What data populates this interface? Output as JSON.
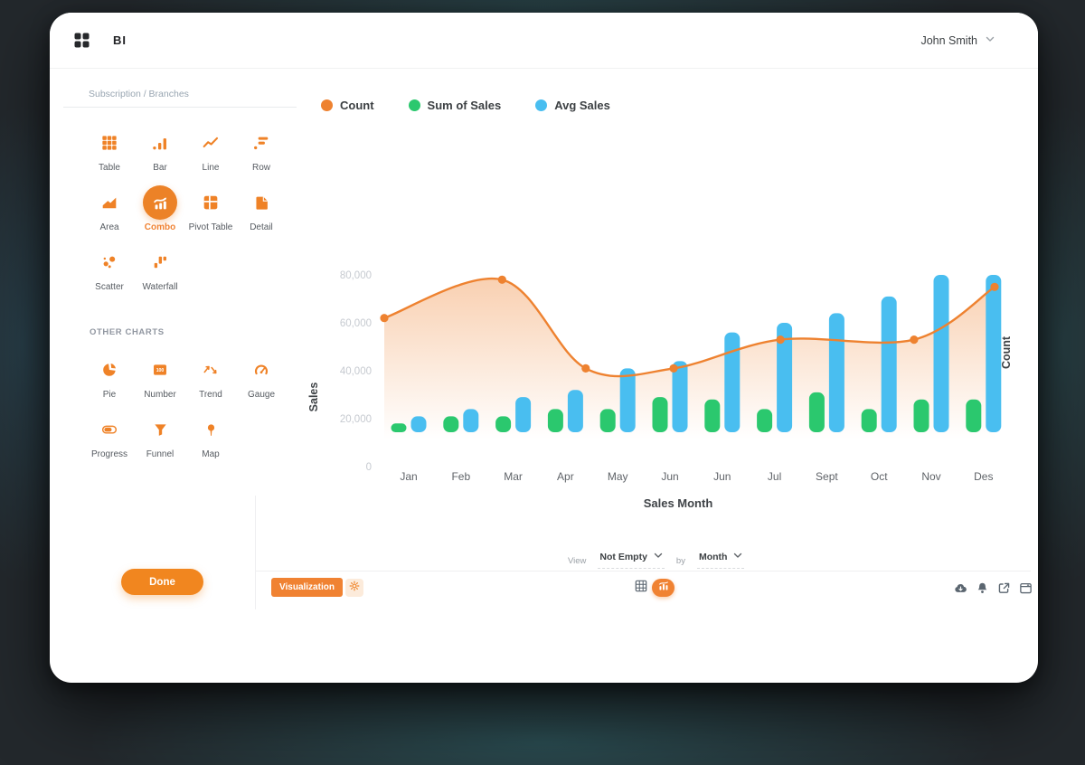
{
  "header": {
    "app_title": "BI",
    "user_name": "John Smith"
  },
  "sidebar": {
    "breadcrumb": [
      "Subscription",
      "Branches"
    ],
    "chart_types": [
      {
        "label": "Table",
        "icon": "table"
      },
      {
        "label": "Bar",
        "icon": "bar"
      },
      {
        "label": "Line",
        "icon": "line"
      },
      {
        "label": "Row",
        "icon": "row"
      },
      {
        "label": "Area",
        "icon": "area"
      },
      {
        "label": "Combo",
        "icon": "combo",
        "selected": true
      },
      {
        "label": "Pivot Table",
        "icon": "pivot-table"
      },
      {
        "label": "Detail",
        "icon": "detail"
      },
      {
        "label": "Scatter",
        "icon": "scatter"
      },
      {
        "label": "Waterfall",
        "icon": "waterfall"
      }
    ],
    "other_charts_label": "OTHER CHARTS",
    "other_charts": [
      {
        "label": "Pie",
        "icon": "pie"
      },
      {
        "label": "Number",
        "icon": "number"
      },
      {
        "label": "Trend",
        "icon": "trend"
      },
      {
        "label": "Gauge",
        "icon": "gauge"
      },
      {
        "label": "Progress",
        "icon": "progress"
      },
      {
        "label": "Funnel",
        "icon": "funnel"
      },
      {
        "label": "Map",
        "icon": "map"
      }
    ],
    "done_label": "Done"
  },
  "legend": [
    {
      "label": "Count",
      "color": "#ee8230"
    },
    {
      "label": "Sum of Sales",
      "color": "#2bc86e"
    },
    {
      "label": "Avg Sales",
      "color": "#49bef0"
    }
  ],
  "chart_data": {
    "type": "combo",
    "categories": [
      "Jan",
      "Feb",
      "Mar",
      "Apr",
      "May",
      "Jun",
      "Jun",
      "Jul",
      "Sept",
      "Oct",
      "Nov",
      "Des"
    ],
    "series": [
      {
        "name": "Sum of Sales",
        "type": "bar",
        "color": "#2bc86e",
        "values": [
          18000,
          21000,
          21000,
          24000,
          24000,
          29000,
          28000,
          24000,
          31000,
          24000,
          28000,
          28000
        ]
      },
      {
        "name": "Avg Sales",
        "type": "bar",
        "color": "#49bef0",
        "values": [
          21000,
          24000,
          29000,
          32000,
          41000,
          44000,
          56000,
          60000,
          64000,
          71000,
          80000,
          80000
        ]
      },
      {
        "name": "Count",
        "type": "line",
        "color": "#ee8230",
        "axis": "right",
        "area_fill": true,
        "points": [
          {
            "pos": 0.0,
            "value": 62000
          },
          {
            "pos": 0.193,
            "value": 78000
          },
          {
            "pos": 0.33,
            "value": 41000
          },
          {
            "pos": 0.474,
            "value": 41000
          },
          {
            "pos": 0.649,
            "value": 53000
          },
          {
            "pos": 0.868,
            "value": 53000
          },
          {
            "pos": 1.0,
            "value": 75000
          }
        ]
      }
    ],
    "xlabel": "Sales Month",
    "ylabel": "Sales",
    "y2label": "Count",
    "yticks": [
      0,
      20000,
      40000,
      60000,
      80000
    ],
    "ylim": [
      0,
      85000
    ],
    "legend_position": "top",
    "grid": false
  },
  "footer": {
    "view_label": "View",
    "filter_value": "Not Empty",
    "by_label": "by",
    "group_value": "Month",
    "visualization_label": "Visualization",
    "actions": [
      "cloud-download",
      "bell",
      "export",
      "window"
    ]
  }
}
